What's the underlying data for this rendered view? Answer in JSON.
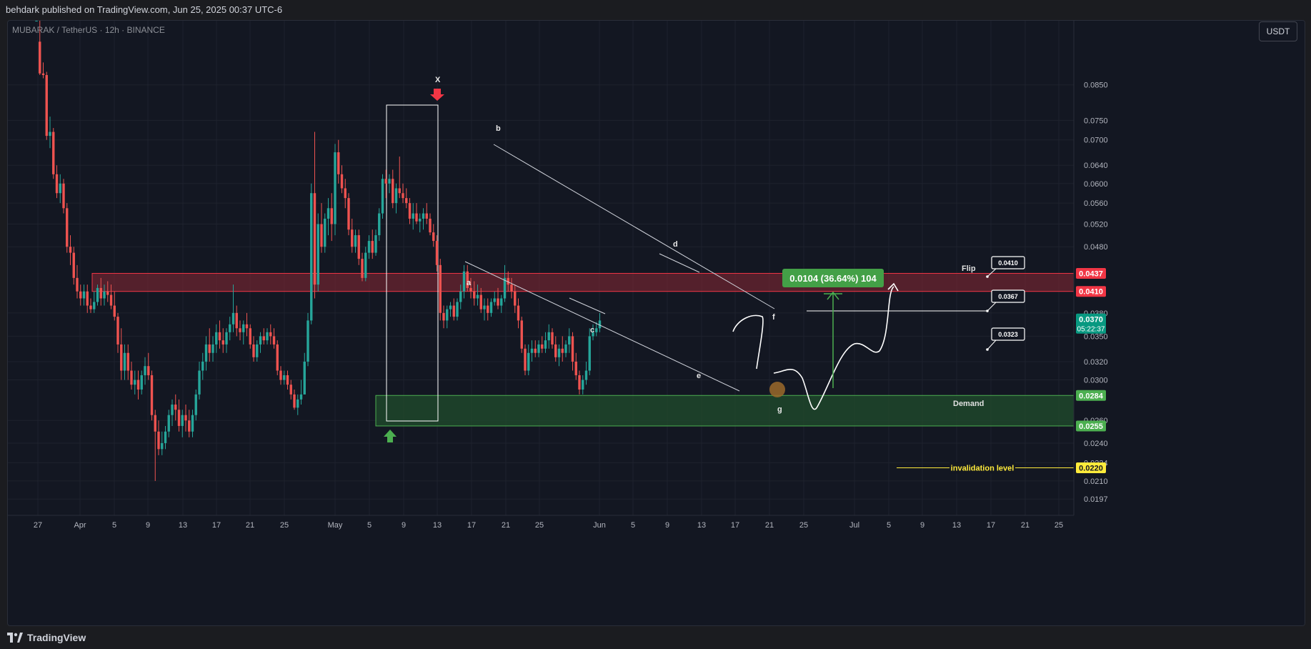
{
  "header": {
    "published_text": "behdark published on TradingView.com, Jun 25, 2025 00:37 UTC-6"
  },
  "symbol": {
    "label": "MUBARAK / TetherUS · 12h · BINANCE"
  },
  "currency_button": "USDT",
  "footer": {
    "brand": "TradingView"
  },
  "colors": {
    "bull": "#26a69a",
    "bear": "#ef5350",
    "background": "#131722",
    "flip_zone": "#6b2430",
    "demand_zone": "#1f4a2c",
    "invalidation": "#ffeb3b"
  },
  "chart_data": {
    "type": "candlestick",
    "title": "",
    "ylim": [
      0.0186,
      0.1066
    ],
    "y_scale": "log",
    "y_ticks": [
      "0.0850",
      "0.0750",
      "0.0700",
      "0.0640",
      "0.0600",
      "0.0560",
      "0.0520",
      "0.0480",
      "0.0380",
      "0.0350",
      "0.0320",
      "0.0300",
      "0.0260",
      "0.0240",
      "0.0224",
      "0.0210",
      "0.0197"
    ],
    "x_ticks": [
      "27",
      "Apr",
      "5",
      "9",
      "13",
      "17",
      "21",
      "25",
      "May",
      "5",
      "9",
      "13",
      "17",
      "21",
      "25",
      "Jun",
      "5",
      "9",
      "13",
      "17",
      "21",
      "25",
      "Jul",
      "5",
      "9",
      "13",
      "17",
      "21",
      "25"
    ],
    "price_labels": [
      {
        "value": "0.0437",
        "color": "#f23645"
      },
      {
        "value": "0.0410",
        "color": "#f23645"
      },
      {
        "value": "0.0370",
        "sub": "05:22:37",
        "color": "#089981"
      },
      {
        "value": "0.0284",
        "color": "#4caf50"
      },
      {
        "value": "0.0255",
        "color": "#4caf50"
      },
      {
        "value": "0.0220",
        "color": "#ffeb3b"
      }
    ],
    "zones": [
      {
        "name": "Flip",
        "from": 0.041,
        "to": 0.0437
      },
      {
        "name": "Demand",
        "from": 0.0255,
        "to": 0.0284
      }
    ],
    "invalidation": {
      "label": "invalidation level",
      "value": 0.022
    },
    "wave_labels": [
      "X",
      "a",
      "b",
      "c",
      "d",
      "e",
      "f",
      "g"
    ],
    "target_boxes": [
      "0.0410",
      "0.0367",
      "0.0323"
    ],
    "measure_label": "0.0104 (36.64%) 104",
    "candles": [
      [
        0.1066,
        0.1066,
        0.1066,
        0.1066
      ],
      [
        0.099,
        0.1066,
        0.088,
        0.0885
      ],
      [
        0.0885,
        0.092,
        0.087,
        0.088
      ],
      [
        0.088,
        0.089,
        0.07,
        0.071
      ],
      [
        0.071,
        0.076,
        0.068,
        0.072
      ],
      [
        0.072,
        0.073,
        0.061,
        0.062
      ],
      [
        0.062,
        0.064,
        0.057,
        0.058
      ],
      [
        0.058,
        0.062,
        0.056,
        0.06
      ],
      [
        0.06,
        0.061,
        0.054,
        0.055
      ],
      [
        0.055,
        0.056,
        0.047,
        0.048
      ],
      [
        0.048,
        0.05,
        0.045,
        0.047
      ],
      [
        0.047,
        0.048,
        0.042,
        0.043
      ],
      [
        0.043,
        0.045,
        0.04,
        0.041
      ],
      [
        0.041,
        0.042,
        0.039,
        0.04
      ],
      [
        0.04,
        0.042,
        0.039,
        0.041
      ],
      [
        0.041,
        0.042,
        0.038,
        0.039
      ],
      [
        0.039,
        0.04,
        0.038,
        0.0385
      ],
      [
        0.0385,
        0.041,
        0.038,
        0.0395
      ],
      [
        0.0395,
        0.042,
        0.039,
        0.0415
      ],
      [
        0.0415,
        0.043,
        0.039,
        0.04
      ],
      [
        0.04,
        0.042,
        0.039,
        0.041
      ],
      [
        0.041,
        0.0425,
        0.0395,
        0.0405
      ],
      [
        0.0405,
        0.042,
        0.0385,
        0.039
      ],
      [
        0.039,
        0.041,
        0.037,
        0.0375
      ],
      [
        0.0375,
        0.038,
        0.033,
        0.034
      ],
      [
        0.034,
        0.036,
        0.03,
        0.031
      ],
      [
        0.031,
        0.034,
        0.03,
        0.033
      ],
      [
        0.033,
        0.034,
        0.03,
        0.031
      ],
      [
        0.031,
        0.032,
        0.029,
        0.0295
      ],
      [
        0.0295,
        0.031,
        0.0285,
        0.03
      ],
      [
        0.03,
        0.031,
        0.028,
        0.029
      ],
      [
        0.029,
        0.031,
        0.0285,
        0.0305
      ],
      [
        0.0305,
        0.0325,
        0.0295,
        0.0315
      ],
      [
        0.0315,
        0.033,
        0.03,
        0.0305
      ],
      [
        0.0305,
        0.031,
        0.026,
        0.0265
      ],
      [
        0.0265,
        0.027,
        0.021,
        0.025
      ],
      [
        0.025,
        0.026,
        0.023,
        0.0235
      ],
      [
        0.0235,
        0.025,
        0.023,
        0.024
      ],
      [
        0.024,
        0.0255,
        0.0235,
        0.025
      ],
      [
        0.025,
        0.027,
        0.0245,
        0.0265
      ],
      [
        0.0265,
        0.028,
        0.0255,
        0.0275
      ],
      [
        0.0275,
        0.0285,
        0.026,
        0.027
      ],
      [
        0.027,
        0.028,
        0.025,
        0.0255
      ],
      [
        0.0255,
        0.027,
        0.0245,
        0.0265
      ],
      [
        0.0265,
        0.0275,
        0.025,
        0.026
      ],
      [
        0.026,
        0.027,
        0.0245,
        0.025
      ],
      [
        0.025,
        0.027,
        0.0245,
        0.0265
      ],
      [
        0.0265,
        0.029,
        0.026,
        0.0285
      ],
      [
        0.0285,
        0.032,
        0.028,
        0.031
      ],
      [
        0.031,
        0.033,
        0.03,
        0.032
      ],
      [
        0.032,
        0.035,
        0.031,
        0.034
      ],
      [
        0.034,
        0.036,
        0.032,
        0.033
      ],
      [
        0.033,
        0.035,
        0.032,
        0.034
      ],
      [
        0.034,
        0.0365,
        0.033,
        0.0355
      ],
      [
        0.0355,
        0.037,
        0.0335,
        0.0345
      ],
      [
        0.0345,
        0.036,
        0.033,
        0.034
      ],
      [
        0.034,
        0.036,
        0.033,
        0.0355
      ],
      [
        0.0355,
        0.0375,
        0.0345,
        0.0365
      ],
      [
        0.0365,
        0.042,
        0.0355,
        0.038
      ],
      [
        0.038,
        0.039,
        0.035,
        0.036
      ],
      [
        0.036,
        0.037,
        0.0345,
        0.0355
      ],
      [
        0.0355,
        0.037,
        0.034,
        0.0365
      ],
      [
        0.0365,
        0.038,
        0.035,
        0.036
      ],
      [
        0.036,
        0.0365,
        0.0335,
        0.034
      ],
      [
        0.034,
        0.035,
        0.032,
        0.0325
      ],
      [
        0.0325,
        0.0345,
        0.032,
        0.034
      ],
      [
        0.034,
        0.0355,
        0.033,
        0.035
      ],
      [
        0.035,
        0.036,
        0.034,
        0.0345
      ],
      [
        0.0345,
        0.036,
        0.034,
        0.0355
      ],
      [
        0.0355,
        0.0365,
        0.034,
        0.035
      ],
      [
        0.035,
        0.036,
        0.0335,
        0.034
      ],
      [
        0.034,
        0.0345,
        0.0305,
        0.031
      ],
      [
        0.031,
        0.0315,
        0.0295,
        0.03
      ],
      [
        0.03,
        0.031,
        0.0295,
        0.0305
      ],
      [
        0.0305,
        0.031,
        0.029,
        0.0295
      ],
      [
        0.0295,
        0.03,
        0.028,
        0.0285
      ],
      [
        0.0285,
        0.029,
        0.027,
        0.0272
      ],
      [
        0.0272,
        0.0285,
        0.0265,
        0.028
      ],
      [
        0.028,
        0.03,
        0.0275,
        0.0285
      ],
      [
        0.0285,
        0.033,
        0.0285,
        0.032
      ],
      [
        0.032,
        0.038,
        0.0315,
        0.037
      ],
      [
        0.037,
        0.06,
        0.0365,
        0.058
      ],
      [
        0.058,
        0.072,
        0.04,
        0.042
      ],
      [
        0.042,
        0.054,
        0.041,
        0.052
      ],
      [
        0.052,
        0.056,
        0.047,
        0.048
      ],
      [
        0.048,
        0.054,
        0.047,
        0.053
      ],
      [
        0.053,
        0.057,
        0.05,
        0.055
      ],
      [
        0.055,
        0.058,
        0.049,
        0.052
      ],
      [
        0.052,
        0.069,
        0.05,
        0.067
      ],
      [
        0.067,
        0.07,
        0.06,
        0.062
      ],
      [
        0.062,
        0.064,
        0.058,
        0.059
      ],
      [
        0.059,
        0.061,
        0.055,
        0.057
      ],
      [
        0.057,
        0.058,
        0.05,
        0.051
      ],
      [
        0.051,
        0.053,
        0.047,
        0.048
      ],
      [
        0.048,
        0.051,
        0.047,
        0.05
      ],
      [
        0.05,
        0.051,
        0.045,
        0.046
      ],
      [
        0.046,
        0.047,
        0.0425,
        0.043
      ],
      [
        0.043,
        0.048,
        0.0425,
        0.047
      ],
      [
        0.047,
        0.05,
        0.046,
        0.049
      ],
      [
        0.049,
        0.051,
        0.046,
        0.047
      ],
      [
        0.047,
        0.051,
        0.0465,
        0.05
      ],
      [
        0.05,
        0.055,
        0.049,
        0.054
      ],
      [
        0.054,
        0.062,
        0.053,
        0.061
      ],
      [
        0.061,
        0.063,
        0.057,
        0.06
      ],
      [
        0.06,
        0.062,
        0.058,
        0.061
      ],
      [
        0.061,
        0.063,
        0.055,
        0.056
      ],
      [
        0.056,
        0.06,
        0.054,
        0.059
      ],
      [
        0.059,
        0.066,
        0.057,
        0.058
      ],
      [
        0.058,
        0.06,
        0.056,
        0.057
      ],
      [
        0.057,
        0.059,
        0.055,
        0.056
      ],
      [
        0.056,
        0.057,
        0.052,
        0.053
      ],
      [
        0.053,
        0.056,
        0.051,
        0.054
      ],
      [
        0.054,
        0.056,
        0.052,
        0.0525
      ],
      [
        0.0525,
        0.054,
        0.0505,
        0.053
      ],
      [
        0.053,
        0.055,
        0.051,
        0.054
      ],
      [
        0.054,
        0.056,
        0.052,
        0.053
      ],
      [
        0.053,
        0.054,
        0.05,
        0.0505
      ],
      [
        0.0505,
        0.052,
        0.048,
        0.049
      ],
      [
        0.049,
        0.05,
        0.044,
        0.045
      ],
      [
        0.045,
        0.046,
        0.037,
        0.038
      ],
      [
        0.038,
        0.039,
        0.036,
        0.037
      ],
      [
        0.037,
        0.039,
        0.036,
        0.0385
      ],
      [
        0.0385,
        0.0395,
        0.0375,
        0.039
      ],
      [
        0.039,
        0.04,
        0.037,
        0.0375
      ],
      [
        0.0375,
        0.04,
        0.037,
        0.0395
      ],
      [
        0.0395,
        0.042,
        0.0385,
        0.041
      ],
      [
        0.041,
        0.045,
        0.04,
        0.044
      ],
      [
        0.044,
        0.045,
        0.041,
        0.0415
      ],
      [
        0.0415,
        0.043,
        0.04,
        0.041
      ],
      [
        0.041,
        0.0425,
        0.039,
        0.04
      ],
      [
        0.04,
        0.042,
        0.039,
        0.0405
      ],
      [
        0.0405,
        0.0415,
        0.038,
        0.0385
      ],
      [
        0.0385,
        0.04,
        0.037,
        0.039
      ],
      [
        0.039,
        0.04,
        0.037,
        0.038
      ],
      [
        0.038,
        0.04,
        0.0375,
        0.0395
      ],
      [
        0.0395,
        0.041,
        0.039,
        0.04
      ],
      [
        0.04,
        0.0415,
        0.0385,
        0.039
      ],
      [
        0.039,
        0.0405,
        0.038,
        0.04
      ],
      [
        0.04,
        0.045,
        0.0395,
        0.043
      ],
      [
        0.043,
        0.044,
        0.041,
        0.042
      ],
      [
        0.042,
        0.043,
        0.04,
        0.041
      ],
      [
        0.041,
        0.042,
        0.038,
        0.039
      ],
      [
        0.039,
        0.04,
        0.036,
        0.037
      ],
      [
        0.037,
        0.0375,
        0.033,
        0.0335
      ],
      [
        0.0335,
        0.034,
        0.0305,
        0.031
      ],
      [
        0.031,
        0.034,
        0.0305,
        0.033
      ],
      [
        0.033,
        0.0345,
        0.032,
        0.0335
      ],
      [
        0.0335,
        0.0345,
        0.0325,
        0.033
      ],
      [
        0.033,
        0.0345,
        0.0325,
        0.034
      ],
      [
        0.034,
        0.035,
        0.033,
        0.0335
      ],
      [
        0.0335,
        0.0355,
        0.033,
        0.0345
      ],
      [
        0.0345,
        0.0365,
        0.0335,
        0.0355
      ],
      [
        0.0355,
        0.036,
        0.0335,
        0.034
      ],
      [
        0.034,
        0.035,
        0.032,
        0.0325
      ],
      [
        0.0325,
        0.034,
        0.0315,
        0.0335
      ],
      [
        0.0335,
        0.035,
        0.032,
        0.033
      ],
      [
        0.033,
        0.0345,
        0.0325,
        0.034
      ],
      [
        0.034,
        0.036,
        0.033,
        0.035
      ],
      [
        0.035,
        0.0355,
        0.031,
        0.032
      ],
      [
        0.032,
        0.033,
        0.03,
        0.0305
      ],
      [
        0.0305,
        0.031,
        0.0285,
        0.029
      ],
      [
        0.029,
        0.0305,
        0.0285,
        0.03
      ],
      [
        0.03,
        0.032,
        0.0295,
        0.031
      ],
      [
        0.031,
        0.036,
        0.0305,
        0.035
      ],
      [
        0.035,
        0.0365,
        0.0345,
        0.0355
      ],
      [
        0.0355,
        0.0368,
        0.035,
        0.036
      ],
      [
        0.036,
        0.038,
        0.0355,
        0.037
      ]
    ]
  }
}
